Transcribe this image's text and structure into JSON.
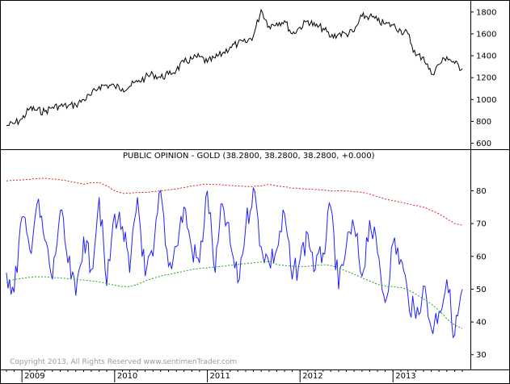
{
  "chart_data": [
    {
      "type": "line",
      "title": "",
      "ylim": [
        560,
        1880
      ],
      "y_ticks": [
        600,
        800,
        1000,
        1200,
        1400,
        1600,
        1800
      ],
      "colors": {
        "line": "#000000"
      },
      "series": [
        {
          "x": [
            "2008-11",
            "2008-12",
            "2009-01",
            "2009-02",
            "2009-03",
            "2009-04",
            "2009-05",
            "2009-06",
            "2009-07",
            "2009-08",
            "2009-09",
            "2009-10",
            "2009-11",
            "2009-12",
            "2010-01",
            "2010-02",
            "2010-03",
            "2010-04",
            "2010-05",
            "2010-06",
            "2010-07",
            "2010-08",
            "2010-09",
            "2010-10",
            "2010-11",
            "2010-12",
            "2011-01",
            "2011-02",
            "2011-03",
            "2011-04",
            "2011-05",
            "2011-06",
            "2011-07",
            "2011-08",
            "2011-09",
            "2011-10",
            "2011-11",
            "2011-12",
            "2012-01",
            "2012-02",
            "2012-03",
            "2012-04",
            "2012-05",
            "2012-06",
            "2012-07",
            "2012-08",
            "2012-09",
            "2012-10",
            "2012-11",
            "2012-12",
            "2013-01",
            "2013-02",
            "2013-03",
            "2013-04",
            "2013-05",
            "2013-06",
            "2013-07",
            "2013-08",
            "2013-09",
            "2013-10"
          ],
          "values": [
            760,
            780,
            820,
            920,
            900,
            890,
            930,
            940,
            940,
            950,
            1000,
            1040,
            1120,
            1130,
            1120,
            1100,
            1120,
            1160,
            1200,
            1230,
            1200,
            1230,
            1270,
            1340,
            1370,
            1390,
            1340,
            1380,
            1420,
            1480,
            1510,
            1520,
            1580,
            1820,
            1670,
            1700,
            1720,
            1600,
            1660,
            1720,
            1670,
            1650,
            1570,
            1600,
            1600,
            1620,
            1760,
            1760,
            1720,
            1690,
            1680,
            1630,
            1600,
            1400,
            1390,
            1230,
            1320,
            1390,
            1330,
            1280
          ]
        }
      ]
    },
    {
      "type": "line",
      "title": "PUBLIC OPINION - GOLD (38.2800, 38.2800, 38.2800, +0.000)",
      "xlabel": "",
      "ylabel": "",
      "ylim": [
        26,
        88
      ],
      "y_ticks": [
        30,
        40,
        50,
        60,
        70,
        80
      ],
      "x_ticks": [
        "2009",
        "2010",
        "2011",
        "2012",
        "2013"
      ],
      "x_tick_dates": [
        "2009-01",
        "2010-01",
        "2011-01",
        "2012-01",
        "2013-01"
      ],
      "legend": "none",
      "x": [
        "2008-11",
        "2008-12",
        "2009-01",
        "2009-02",
        "2009-03",
        "2009-04",
        "2009-05",
        "2009-06",
        "2009-07",
        "2009-08",
        "2009-09",
        "2009-10",
        "2009-11",
        "2009-12",
        "2010-01",
        "2010-02",
        "2010-03",
        "2010-04",
        "2010-05",
        "2010-06",
        "2010-07",
        "2010-08",
        "2010-09",
        "2010-10",
        "2010-11",
        "2010-12",
        "2011-01",
        "2011-02",
        "2011-03",
        "2011-04",
        "2011-05",
        "2011-06",
        "2011-07",
        "2011-08",
        "2011-09",
        "2011-10",
        "2011-11",
        "2011-12",
        "2012-01",
        "2012-02",
        "2012-03",
        "2012-04",
        "2012-05",
        "2012-06",
        "2012-07",
        "2012-08",
        "2012-09",
        "2012-10",
        "2012-11",
        "2012-12",
        "2013-01",
        "2013-02",
        "2013-03",
        "2013-04",
        "2013-05",
        "2013-06",
        "2013-07",
        "2013-08",
        "2013-09",
        "2013-10"
      ],
      "series": [
        {
          "name": "",
          "color": "#2020ff",
          "dash": "solid",
          "values": [
            55,
            49,
            72,
            62,
            76,
            65,
            53,
            74,
            58,
            48,
            66,
            56,
            78,
            51,
            73,
            69,
            55,
            78,
            54,
            60,
            80,
            57,
            63,
            75,
            62,
            58,
            80,
            55,
            76,
            64,
            52,
            69,
            81,
            63,
            58,
            62,
            73,
            53,
            59,
            67,
            56,
            61,
            75,
            50,
            63,
            69,
            54,
            71,
            61,
            46,
            64,
            59,
            48,
            41,
            51,
            38,
            43,
            53,
            36,
            50
          ]
        },
        {
          "name": "",
          "color": "#e02020",
          "dash": "dotted",
          "values": [
            83,
            83.2,
            83.3,
            83.5,
            83.7,
            83.8,
            83.6,
            83.3,
            83,
            82.5,
            82,
            82.5,
            82.5,
            81.5,
            80,
            79.2,
            79.2,
            79.5,
            79.5,
            79.8,
            80,
            80.3,
            80.6,
            81,
            81.5,
            81.8,
            82,
            82,
            81.8,
            81.6,
            81.5,
            81.3,
            81.3,
            81.5,
            82,
            81.5,
            81.2,
            80.8,
            80.7,
            80.5,
            80.4,
            80.2,
            80,
            80,
            80,
            79.7,
            79.5,
            79,
            78.2,
            77.5,
            77,
            76.5,
            76,
            75.5,
            75,
            74,
            73,
            71.5,
            70,
            69.5
          ]
        },
        {
          "name": "",
          "color": "#20a020",
          "dash": "dotted",
          "values": [
            52,
            53,
            53.3,
            53.6,
            53.8,
            53.8,
            53.6,
            53.4,
            53.2,
            53,
            52.8,
            52.5,
            52.2,
            51.8,
            51.2,
            50.8,
            50.8,
            51.5,
            52.5,
            53.3,
            54,
            54.5,
            55,
            55.5,
            56,
            56.3,
            56.5,
            56.8,
            57,
            57.3,
            57.5,
            57.8,
            58,
            58.3,
            58.5,
            57.5,
            57.2,
            57,
            56.8,
            57,
            57.2,
            57.5,
            57.2,
            56.5,
            55.5,
            54.5,
            53.5,
            52.5,
            51.5,
            51,
            50.8,
            50.5,
            49.8,
            48.5,
            47,
            45.5,
            43.5,
            41,
            39,
            38
          ]
        }
      ]
    }
  ],
  "copyright": "Copyright 2013, All Rights Reserved  www.sentimenTrader.com"
}
